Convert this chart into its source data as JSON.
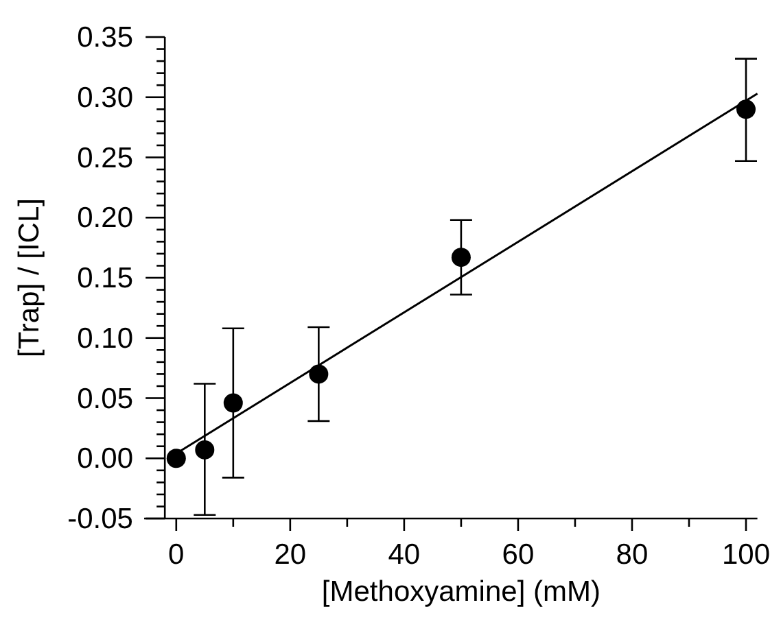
{
  "chart_data": {
    "type": "scatter",
    "xlabel": "[Methoxyamine] (mM)",
    "ylabel": "[Trap] / [ICL]",
    "xlim": [
      -2,
      102
    ],
    "xticks": [
      0,
      {
        "value": 10,
        "label": null
      },
      20,
      {
        "value": 30,
        "label": null
      },
      40,
      {
        "value": 50,
        "label": null
      },
      60,
      {
        "value": 70,
        "label": null
      },
      80,
      {
        "value": 90,
        "label": null
      },
      100
    ],
    "ylim": [
      -0.05,
      0.35
    ],
    "yticks": [
      {
        "value": -0.05,
        "label": "-0.05"
      },
      {
        "value": -0.04,
        "label": null
      },
      {
        "value": -0.03,
        "label": null
      },
      {
        "value": -0.02,
        "label": null
      },
      {
        "value": -0.01,
        "label": null
      },
      {
        "value": 0,
        "label": "0.00"
      },
      {
        "value": 0.01,
        "label": null
      },
      {
        "value": 0.02,
        "label": null
      },
      {
        "value": 0.03,
        "label": null
      },
      {
        "value": 0.04,
        "label": null
      },
      {
        "value": 0.05,
        "label": "0.05"
      },
      {
        "value": 0.06,
        "label": null
      },
      {
        "value": 0.07,
        "label": null
      },
      {
        "value": 0.08,
        "label": null
      },
      {
        "value": 0.09,
        "label": null
      },
      {
        "value": 0.1,
        "label": "0.10"
      },
      {
        "value": 0.11,
        "label": null
      },
      {
        "value": 0.12,
        "label": null
      },
      {
        "value": 0.13,
        "label": null
      },
      {
        "value": 0.14,
        "label": null
      },
      {
        "value": 0.15,
        "label": "0.15"
      },
      {
        "value": 0.16,
        "label": null
      },
      {
        "value": 0.17,
        "label": null
      },
      {
        "value": 0.18,
        "label": null
      },
      {
        "value": 0.19,
        "label": null
      },
      {
        "value": 0.2,
        "label": "0.20"
      },
      {
        "value": 0.21,
        "label": null
      },
      {
        "value": 0.22,
        "label": null
      },
      {
        "value": 0.23,
        "label": null
      },
      {
        "value": 0.24,
        "label": null
      },
      {
        "value": 0.25,
        "label": "0.25"
      },
      {
        "value": 0.26,
        "label": null
      },
      {
        "value": 0.27,
        "label": null
      },
      {
        "value": 0.28,
        "label": null
      },
      {
        "value": 0.29,
        "label": null
      },
      {
        "value": 0.3,
        "label": "0.30"
      },
      {
        "value": 0.31,
        "label": null
      },
      {
        "value": 0.32,
        "label": null
      },
      {
        "value": 0.33,
        "label": null
      },
      {
        "value": 0.34,
        "label": null
      },
      {
        "value": 0.35,
        "label": "0.35"
      }
    ],
    "grid": false,
    "marker": "circle",
    "series": [
      {
        "color": "#000000",
        "x": [
          0,
          5,
          10,
          25,
          50,
          100
        ],
        "values": [
          0,
          0.007,
          0.046,
          0.07,
          0.167,
          0.29
        ],
        "errors": [
          null,
          [
            -0.047,
            0.062
          ],
          [
            -0.016,
            0.108
          ],
          [
            0.031,
            0.109
          ],
          [
            0.136,
            0.198
          ],
          [
            0.247,
            0.332
          ]
        ]
      },
      {
        "type": "line",
        "color": "#000000",
        "x": [
          0,
          102
        ],
        "values": [
          0.004,
          0.303
        ],
        "line_style": "solid",
        "marker": "none"
      }
    ]
  }
}
